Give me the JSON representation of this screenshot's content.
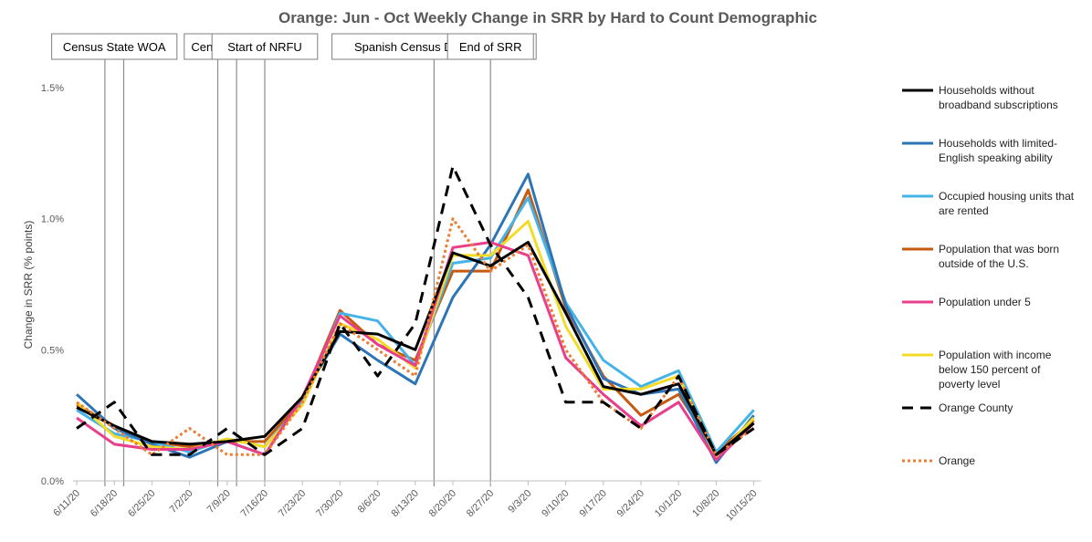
{
  "chart_data": {
    "type": "line",
    "title": "Orange: Jun - Oct Weekly Change in SRR by Hard to Count Demographic",
    "xlabel": "",
    "ylabel": "Change in SRR (% points)",
    "ylim": [
      0,
      1.5
    ],
    "yticks": [
      0,
      0.5,
      1.0,
      1.5
    ],
    "ytick_labels": [
      "0.0%",
      "0.5%",
      "1.0%",
      "1.5%"
    ],
    "grid": false,
    "legend_position": "right",
    "categories": [
      "6/11/20",
      "6/18/20",
      "6/25/20",
      "7/2/20",
      "7/9/20",
      "7/16/20",
      "7/23/20",
      "7/30/20",
      "8/6/20",
      "8/13/20",
      "8/20/20",
      "8/27/20",
      "9/3/20",
      "9/10/20",
      "9/17/20",
      "9/24/20",
      "10/1/20",
      "10/8/20",
      "10/15/20"
    ],
    "events": [
      {
        "label": "Census State WOA",
        "lines": [
          1.5,
          2.5
        ]
      },
      {
        "label": "Census WOA",
        "lines": [
          7.5,
          8.5
        ]
      },
      {
        "label": "Start of NRFU",
        "lines": [
          10
        ]
      },
      {
        "label": "Spanish Census Day of Action",
        "lines": [
          19
        ]
      },
      {
        "label": "End of SRR",
        "lines": [
          22
        ]
      }
    ],
    "series": [
      {
        "name": "Households without broadband subscriptions",
        "legend_lines": [
          "Households without",
          "broadband subscriptions"
        ],
        "color": "#000000",
        "dash": "solid",
        "values": [
          0.28,
          0.21,
          0.15,
          0.14,
          0.15,
          0.17,
          0.32,
          0.57,
          0.56,
          0.5,
          0.87,
          0.82,
          0.91,
          0.64,
          0.36,
          0.33,
          0.37,
          0.1,
          0.22
        ]
      },
      {
        "name": "Households with limited-English speaking ability",
        "legend_lines": [
          "Households with limited-",
          "English speaking ability"
        ],
        "color": "#2E75B6",
        "dash": "solid",
        "values": [
          0.33,
          0.2,
          0.14,
          0.09,
          0.15,
          0.1,
          0.32,
          0.56,
          0.46,
          0.37,
          0.7,
          0.9,
          1.17,
          0.67,
          0.39,
          0.33,
          0.35,
          0.07,
          0.25
        ]
      },
      {
        "name": "Occupied housing units that are rented",
        "legend_lines": [
          "Occupied housing units that",
          "are rented"
        ],
        "color": "#45B3E7",
        "dash": "solid",
        "values": [
          0.27,
          0.18,
          0.15,
          0.11,
          0.16,
          0.13,
          0.3,
          0.64,
          0.61,
          0.44,
          0.83,
          0.85,
          1.08,
          0.68,
          0.46,
          0.36,
          0.42,
          0.11,
          0.27
        ]
      },
      {
        "name": "Population that was born outside of the U.S.",
        "legend_lines": [
          "Population that was born",
          "outside of the U.S."
        ],
        "color": "#C55A11",
        "dash": "solid",
        "values": [
          0.29,
          0.21,
          0.15,
          0.13,
          0.15,
          0.15,
          0.31,
          0.65,
          0.52,
          0.46,
          0.8,
          0.8,
          1.11,
          0.66,
          0.4,
          0.25,
          0.33,
          0.11,
          0.23
        ]
      },
      {
        "name": "Population under 5",
        "legend_lines": [
          "Population under 5"
        ],
        "color": "#E83E8C",
        "dash": "solid",
        "values": [
          0.24,
          0.14,
          0.12,
          0.12,
          0.15,
          0.1,
          0.32,
          0.63,
          0.52,
          0.44,
          0.89,
          0.91,
          0.86,
          0.47,
          0.33,
          0.21,
          0.3,
          0.08,
          0.22
        ]
      },
      {
        "name": "Population with income below 150 percent of poverty level",
        "legend_lines": [
          "Population with income",
          "below 150 percent of",
          "poverty level"
        ],
        "color": "#F2DC28",
        "dash": "solid",
        "values": [
          0.3,
          0.17,
          0.13,
          0.12,
          0.16,
          0.13,
          0.29,
          0.6,
          0.54,
          0.43,
          0.86,
          0.86,
          0.99,
          0.59,
          0.35,
          0.35,
          0.4,
          0.09,
          0.24
        ]
      },
      {
        "name": "Orange County",
        "legend_lines": [
          "Orange County"
        ],
        "color": "#000000",
        "dash": "dashed",
        "values": [
          0.2,
          0.3,
          0.1,
          0.1,
          0.2,
          0.1,
          0.2,
          0.6,
          0.4,
          0.6,
          1.2,
          0.9,
          0.7,
          0.3,
          0.3,
          0.2,
          0.4,
          0.1,
          0.2
        ]
      },
      {
        "name": "Orange",
        "legend_lines": [
          "Orange"
        ],
        "color": "#ED7D31",
        "dash": "dotted",
        "values": [
          0.3,
          0.2,
          0.1,
          0.2,
          0.1,
          0.1,
          0.3,
          0.6,
          0.5,
          0.4,
          1.0,
          0.8,
          0.9,
          0.5,
          0.3,
          0.2,
          0.4,
          0.1,
          0.2
        ]
      }
    ]
  }
}
